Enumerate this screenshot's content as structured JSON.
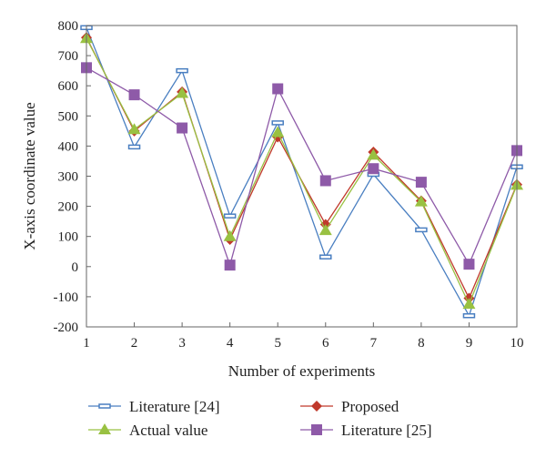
{
  "chart_data": {
    "type": "line",
    "title": "",
    "xlabel": "Number of experiments",
    "ylabel": "X-axis coordinate value",
    "x": [
      1,
      2,
      3,
      4,
      5,
      6,
      7,
      8,
      9,
      10
    ],
    "xlim": [
      1,
      10
    ],
    "ylim": [
      -200,
      800
    ],
    "yticks": [
      -200,
      -100,
      0,
      100,
      200,
      300,
      400,
      500,
      600,
      700,
      800
    ],
    "grid": false,
    "legend_position": "bottom",
    "series": [
      {
        "name": "Literature [24]",
        "color": "#4a7fc1",
        "marker": "dash",
        "values": [
          793,
          397,
          650,
          168,
          477,
          32,
          306,
          122,
          -163,
          331
        ]
      },
      {
        "name": "Proposed",
        "color": "#c0392b",
        "marker": "diamond",
        "values": [
          760,
          450,
          580,
          90,
          430,
          140,
          380,
          218,
          -105,
          272
        ]
      },
      {
        "name": "Actual value",
        "color": "#99c142",
        "marker": "triangle",
        "values": [
          757,
          455,
          575,
          100,
          445,
          120,
          370,
          215,
          -125,
          270
        ]
      },
      {
        "name": "Literature [25]",
        "color": "#8e5aa8",
        "marker": "square",
        "values": [
          660,
          570,
          460,
          5,
          590,
          285,
          325,
          280,
          8,
          385
        ]
      }
    ]
  }
}
